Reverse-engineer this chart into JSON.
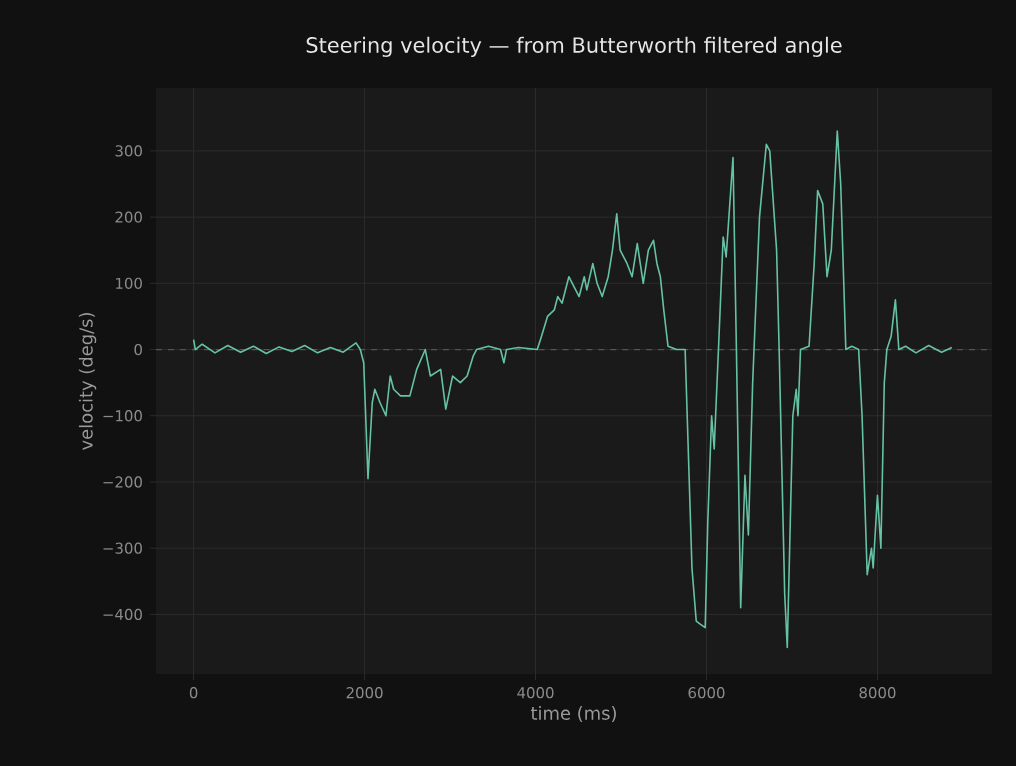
{
  "chart_data": {
    "type": "line",
    "title": "Steering velocity — from Butterworth filtered angle",
    "xlabel": "time (ms)",
    "ylabel": "velocity (deg/s)",
    "xlim": [
      -440,
      9340
    ],
    "ylim": [
      -490,
      395
    ],
    "xticks": [
      0,
      2000,
      4000,
      6000,
      8000
    ],
    "yticks": [
      {
        "value": -400,
        "label": "−400"
      },
      {
        "value": -300,
        "label": "−300"
      },
      {
        "value": -200,
        "label": "−200"
      },
      {
        "value": -100,
        "label": "−100"
      },
      0,
      100,
      200,
      300
    ],
    "grid": true,
    "line_style": "solid",
    "marker": "none",
    "ref_lines": [
      {
        "axis": "y",
        "value": 0,
        "color": "#555555",
        "line_style": "dashed"
      }
    ],
    "series": [
      {
        "color": "#66c2a5",
        "x": [
          0,
          20,
          100,
          250,
          400,
          550,
          700,
          850,
          1000,
          1150,
          1300,
          1450,
          1600,
          1750,
          1900,
          1950,
          1990,
          2040,
          2090,
          2120,
          2180,
          2250,
          2300,
          2340,
          2420,
          2530,
          2610,
          2710,
          2770,
          2890,
          2950,
          3030,
          3120,
          3200,
          3270,
          3310,
          3450,
          3590,
          3630,
          3660,
          3800,
          4020,
          4070,
          4140,
          4220,
          4260,
          4310,
          4390,
          4430,
          4510,
          4570,
          4600,
          4670,
          4720,
          4780,
          4850,
          4900,
          4950,
          4990,
          5070,
          5130,
          5190,
          5260,
          5320,
          5380,
          5420,
          5460,
          5500,
          5550,
          5650,
          5750,
          5830,
          5880,
          5930,
          5985,
          6015,
          6060,
          6090,
          6140,
          6195,
          6230,
          6310,
          6350,
          6400,
          6450,
          6490,
          6540,
          6620,
          6700,
          6740,
          6820,
          6850,
          6915,
          6945,
          7010,
          7050,
          7070,
          7100,
          7200,
          7260,
          7300,
          7360,
          7410,
          7460,
          7530,
          7570,
          7630,
          7700,
          7780,
          7820,
          7880,
          7930,
          7950,
          8000,
          8040,
          8080,
          8110,
          8160,
          8210,
          8250,
          8330,
          8450,
          8600,
          8750,
          8870
        ],
        "values": [
          15,
          0,
          8,
          -5,
          6,
          -4,
          5,
          -6,
          4,
          -3,
          6,
          -5,
          3,
          -4,
          10,
          0,
          -20,
          -195,
          -80,
          -60,
          -80,
          -100,
          -40,
          -60,
          -70,
          -70,
          -30,
          0,
          -40,
          -30,
          -90,
          -40,
          -50,
          -40,
          -10,
          0,
          5,
          0,
          -20,
          0,
          3,
          0,
          20,
          50,
          60,
          80,
          70,
          110,
          100,
          80,
          110,
          90,
          130,
          100,
          80,
          110,
          150,
          205,
          150,
          130,
          110,
          160,
          100,
          150,
          165,
          130,
          110,
          60,
          5,
          0,
          0,
          -330,
          -410,
          -415,
          -420,
          -260,
          -100,
          -150,
          0,
          170,
          140,
          290,
          0,
          -390,
          -190,
          -280,
          -50,
          200,
          310,
          300,
          150,
          0,
          -370,
          -450,
          -100,
          -60,
          -100,
          0,
          5,
          130,
          240,
          220,
          110,
          150,
          330,
          250,
          0,
          5,
          0,
          -100,
          -340,
          -300,
          -330,
          -220,
          -300,
          -50,
          0,
          20,
          75,
          0,
          5,
          -5,
          6,
          -4,
          3
        ]
      }
    ]
  }
}
